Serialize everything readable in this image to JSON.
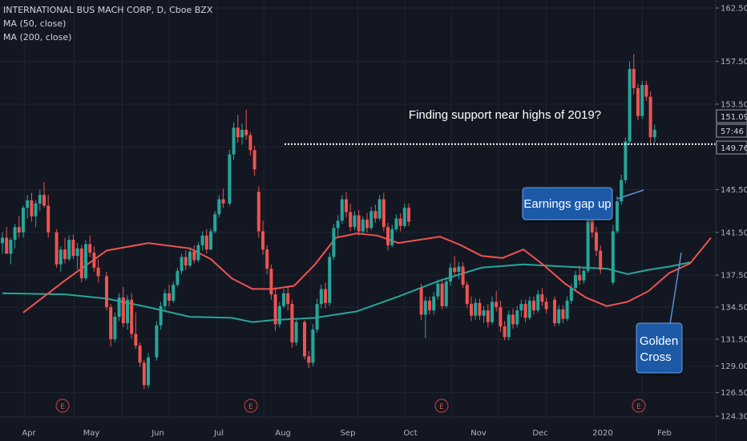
{
  "chart_data": {
    "type": "candlestick",
    "title": "INTERNATIONAL BUS MACH CORP, D, Cboe BZX",
    "indicators": [
      {
        "name": "MA (50, close)",
        "color": "#ef5350"
      },
      {
        "name": "MA (200, close)",
        "color": "#26a69a"
      }
    ],
    "ylim": [
      124.3,
      162.5
    ],
    "y_ticks": [
      "124.30",
      "126.50",
      "129.00",
      "131.50",
      "134.50",
      "137.50",
      "141.50",
      "145.50",
      "149.76",
      "153.50",
      "157.50",
      "162.50"
    ],
    "x_ticks": [
      "Apr",
      "May",
      "Jun",
      "Jul",
      "Aug",
      "Sep",
      "Oct",
      "Nov",
      "Dec",
      "2020",
      "Feb"
    ],
    "price_labels": {
      "upper": "151.09",
      "countdown": "57:46",
      "lower": "149.76"
    },
    "earnings_marker": "E",
    "annotations": {
      "support": "Finding support near highs of 2019?",
      "gap": "Earnings gap up",
      "cross_line1": "Golden",
      "cross_line2": "Cross"
    },
    "support_level": 149.76,
    "ma50": [
      [
        1,
        134
      ],
      [
        3,
        137
      ],
      [
        5,
        139.8
      ],
      [
        7,
        140.5
      ],
      [
        9,
        140
      ],
      [
        10,
        139
      ],
      [
        11,
        137.2
      ],
      [
        12,
        136.2
      ],
      [
        13,
        136.2
      ],
      [
        14,
        136.5
      ],
      [
        15,
        138.5
      ],
      [
        16,
        141
      ],
      [
        17,
        141.4
      ],
      [
        18,
        141.2
      ],
      [
        19,
        140.5
      ],
      [
        20,
        140.8
      ],
      [
        21,
        141.1
      ],
      [
        22,
        140.3
      ],
      [
        23,
        139.3
      ],
      [
        24,
        139.1
      ],
      [
        25,
        139.9
      ],
      [
        26,
        138.4
      ],
      [
        27,
        136.7
      ],
      [
        28,
        135.4
      ],
      [
        29,
        134.6
      ],
      [
        30,
        135
      ],
      [
        31,
        136
      ],
      [
        32,
        137.7
      ],
      [
        33,
        138.6
      ],
      [
        34,
        141
      ]
    ],
    "ma200": [
      [
        0,
        135.8
      ],
      [
        3,
        135.7
      ],
      [
        5,
        135.3
      ],
      [
        7,
        134.5
      ],
      [
        9,
        133.6
      ],
      [
        11,
        133.5
      ],
      [
        12,
        133.1
      ],
      [
        13,
        133.3
      ],
      [
        15,
        133.5
      ],
      [
        17,
        134.1
      ],
      [
        19,
        135.5
      ],
      [
        21,
        137
      ],
      [
        23,
        138.2
      ],
      [
        25,
        138.5
      ],
      [
        27,
        138.3
      ],
      [
        29,
        138.1
      ],
      [
        30,
        137.6
      ],
      [
        31,
        138
      ],
      [
        32,
        138.3
      ],
      [
        33,
        138.7
      ]
    ],
    "candles": [
      [
        0.0,
        140.5,
        141.5,
        139.5,
        141.0
      ],
      [
        0.2,
        141.0,
        142.0,
        139.8,
        139.5
      ],
      [
        0.4,
        139.5,
        141.0,
        138.5,
        140.8
      ],
      [
        0.6,
        140.8,
        142.3,
        140.0,
        142.0
      ],
      [
        0.8,
        142.0,
        143.0,
        141.0,
        141.5
      ],
      [
        1.0,
        141.5,
        144.0,
        141.0,
        143.8
      ],
      [
        1.2,
        143.8,
        145.0,
        142.8,
        144.5
      ],
      [
        1.4,
        144.5,
        145.2,
        142.5,
        143.0
      ],
      [
        1.6,
        143.0,
        144.5,
        142.0,
        144.2
      ],
      [
        1.8,
        144.2,
        145.5,
        143.5,
        145.0
      ],
      [
        2.0,
        145.0,
        146.2,
        143.8,
        144.0
      ],
      [
        2.2,
        144.0,
        145.0,
        141.0,
        141.5
      ],
      [
        2.6,
        141.5,
        141.8,
        138.2,
        138.5
      ],
      [
        2.8,
        138.5,
        140.2,
        137.8,
        139.9
      ],
      [
        3.0,
        139.9,
        141.0,
        138.6,
        139.0
      ],
      [
        3.2,
        139.0,
        141.2,
        138.8,
        140.8
      ],
      [
        3.4,
        140.8,
        141.3,
        139.0,
        139.3
      ],
      [
        3.6,
        139.3,
        140.5,
        138.0,
        140.0
      ],
      [
        3.8,
        140.0,
        140.3,
        136.8,
        137.2
      ],
      [
        4.0,
        137.2,
        140.8,
        137.0,
        140.4
      ],
      [
        4.2,
        140.4,
        141.2,
        139.2,
        139.6
      ],
      [
        4.4,
        139.6,
        140.2,
        137.8,
        138.2
      ],
      [
        4.6,
        138.2,
        139.0,
        136.8,
        137.4
      ],
      [
        5.0,
        137.4,
        137.8,
        134.2,
        134.5
      ],
      [
        5.2,
        134.5,
        134.8,
        130.8,
        131.5
      ],
      [
        5.4,
        131.5,
        134.0,
        131.2,
        133.6
      ],
      [
        5.6,
        133.6,
        135.8,
        133.2,
        135.4
      ],
      [
        5.8,
        135.4,
        136.4,
        132.6,
        133.0
      ],
      [
        6.0,
        133.0,
        135.6,
        132.4,
        135.2
      ],
      [
        6.2,
        135.2,
        135.8,
        131.6,
        132.0
      ],
      [
        6.4,
        132.0,
        134.0,
        130.6,
        130.9
      ],
      [
        6.6,
        130.9,
        131.2,
        128.9,
        129.3
      ],
      [
        6.8,
        129.3,
        129.6,
        126.8,
        127.2
      ],
      [
        7.0,
        127.2,
        130.2,
        126.9,
        129.8
      ],
      [
        7.4,
        129.8,
        133.2,
        129.5,
        132.8
      ],
      [
        7.6,
        132.8,
        135.0,
        132.4,
        134.6
      ],
      [
        7.8,
        134.6,
        136.2,
        134.2,
        135.8
      ],
      [
        8.0,
        135.8,
        136.6,
        134.6,
        135.1
      ],
      [
        8.2,
        135.1,
        136.9,
        134.9,
        136.6
      ],
      [
        8.4,
        136.6,
        138.2,
        136.4,
        137.9
      ],
      [
        8.6,
        137.9,
        139.5,
        137.6,
        139.2
      ],
      [
        8.8,
        139.2,
        139.8,
        138.0,
        138.4
      ],
      [
        9.0,
        138.4,
        140.1,
        138.2,
        139.7
      ],
      [
        9.2,
        139.7,
        140.3,
        138.6,
        138.9
      ],
      [
        9.4,
        138.9,
        140.6,
        138.7,
        140.3
      ],
      [
        9.6,
        140.3,
        141.6,
        139.8,
        141.2
      ],
      [
        9.8,
        141.2,
        141.8,
        139.5,
        139.9
      ],
      [
        10.0,
        139.9,
        141.9,
        139.8,
        141.6
      ],
      [
        10.2,
        141.6,
        143.5,
        141.4,
        143.2
      ],
      [
        10.4,
        143.2,
        145.0,
        142.9,
        144.6
      ],
      [
        10.6,
        144.6,
        145.6,
        143.8,
        144.2
      ],
      [
        10.9,
        144.2,
        149.2,
        144.0,
        148.8
      ],
      [
        11.1,
        148.8,
        151.8,
        148.3,
        151.3
      ],
      [
        11.3,
        151.3,
        152.5,
        149.9,
        150.4
      ],
      [
        11.5,
        150.4,
        151.7,
        149.7,
        151.1
      ],
      [
        11.7,
        151.1,
        153.0,
        150.2,
        150.6
      ],
      [
        11.9,
        150.6,
        150.9,
        148.7,
        149.2
      ],
      [
        12.1,
        149.2,
        149.6,
        146.8,
        147.4
      ],
      [
        12.3,
        145.3,
        145.8,
        141.0,
        141.6
      ],
      [
        12.5,
        141.6,
        142.6,
        139.4,
        139.9
      ],
      [
        12.7,
        139.9,
        140.3,
        137.6,
        138.1
      ],
      [
        12.9,
        138.1,
        138.5,
        135.2,
        135.7
      ],
      [
        13.1,
        135.7,
        136.4,
        132.3,
        132.9
      ],
      [
        13.3,
        132.9,
        135.0,
        132.6,
        134.6
      ],
      [
        13.5,
        134.6,
        136.2,
        134.4,
        135.8
      ],
      [
        13.7,
        135.8,
        136.4,
        134.2,
        134.8
      ],
      [
        13.9,
        134.8,
        135.2,
        130.7,
        131.2
      ],
      [
        14.1,
        131.2,
        133.5,
        130.9,
        133.1
      ],
      [
        14.5,
        133.1,
        133.3,
        129.6,
        129.9
      ],
      [
        14.7,
        129.9,
        130.4,
        128.8,
        129.3
      ],
      [
        14.9,
        129.3,
        132.9,
        129.0,
        132.4
      ],
      [
        15.1,
        132.4,
        135.3,
        132.1,
        134.8
      ],
      [
        15.3,
        134.8,
        136.6,
        134.4,
        136.2
      ],
      [
        15.5,
        136.2,
        136.8,
        134.4,
        134.9
      ],
      [
        15.7,
        134.9,
        139.6,
        134.6,
        139.2
      ],
      [
        15.9,
        139.2,
        142.3,
        138.9,
        141.9
      ],
      [
        16.1,
        141.9,
        143.1,
        141.1,
        142.6
      ],
      [
        16.3,
        142.6,
        145.0,
        142.3,
        144.6
      ],
      [
        16.5,
        144.6,
        145.3,
        142.9,
        143.4
      ],
      [
        16.7,
        143.4,
        144.2,
        141.6,
        142.0
      ],
      [
        16.9,
        142.0,
        143.5,
        141.7,
        143.1
      ],
      [
        17.1,
        143.1,
        143.6,
        141.2,
        141.6
      ],
      [
        17.3,
        141.6,
        143.0,
        141.3,
        142.7
      ],
      [
        17.5,
        142.7,
        143.3,
        141.5,
        141.9
      ],
      [
        17.7,
        141.9,
        143.9,
        141.7,
        143.5
      ],
      [
        17.9,
        143.5,
        144.1,
        142.4,
        142.8
      ],
      [
        18.1,
        142.8,
        145.0,
        142.6,
        144.6
      ],
      [
        18.3,
        144.6,
        145.2,
        141.6,
        142.0
      ],
      [
        18.5,
        142.0,
        142.4,
        139.8,
        140.3
      ],
      [
        18.7,
        140.3,
        142.2,
        140.1,
        141.8
      ],
      [
        18.9,
        141.8,
        143.2,
        141.6,
        142.8
      ],
      [
        19.1,
        142.8,
        143.3,
        141.6,
        142.1
      ],
      [
        19.3,
        142.1,
        144.2,
        141.9,
        143.8
      ],
      [
        19.5,
        143.8,
        144.2,
        142.1,
        142.5
      ],
      [
        20.1,
        136.3,
        136.7,
        133.3,
        133.8
      ],
      [
        20.3,
        133.8,
        135.5,
        131.6,
        135.1
      ],
      [
        20.5,
        135.1,
        135.5,
        133.8,
        134.2
      ],
      [
        20.7,
        134.2,
        135.9,
        133.8,
        135.5
      ],
      [
        20.9,
        135.5,
        137.1,
        135.2,
        136.7
      ],
      [
        21.1,
        136.7,
        137.0,
        134.3,
        134.6
      ],
      [
        21.3,
        134.6,
        137.3,
        134.4,
        136.9
      ],
      [
        21.5,
        136.9,
        138.6,
        136.5,
        138.2
      ],
      [
        21.7,
        138.2,
        139.3,
        137.5,
        137.8
      ],
      [
        21.9,
        137.8,
        138.7,
        137.1,
        138.3
      ],
      [
        22.1,
        138.3,
        138.7,
        136.3,
        136.6
      ],
      [
        22.3,
        136.6,
        136.9,
        134.4,
        134.8
      ],
      [
        22.5,
        134.8,
        135.5,
        133.2,
        133.7
      ],
      [
        22.7,
        133.7,
        135.3,
        133.3,
        134.9
      ],
      [
        22.9,
        134.9,
        135.3,
        133.3,
        133.7
      ],
      [
        23.1,
        133.7,
        134.6,
        133.0,
        134.2
      ],
      [
        23.3,
        134.2,
        134.8,
        132.6,
        133.1
      ],
      [
        23.5,
        133.1,
        135.5,
        132.9,
        135.0
      ],
      [
        23.7,
        135.0,
        136.0,
        134.1,
        134.5
      ],
      [
        23.9,
        134.5,
        135.1,
        132.2,
        132.7
      ],
      [
        24.1,
        132.7,
        133.2,
        131.4,
        131.7
      ],
      [
        24.3,
        131.7,
        134.2,
        131.4,
        133.8
      ],
      [
        24.5,
        133.8,
        134.4,
        132.5,
        132.9
      ],
      [
        24.7,
        132.9,
        134.6,
        132.6,
        134.2
      ],
      [
        24.9,
        134.2,
        135.2,
        133.6,
        134.8
      ],
      [
        25.1,
        134.8,
        135.2,
        133.1,
        133.5
      ],
      [
        25.3,
        133.5,
        135.5,
        133.3,
        135.1
      ],
      [
        25.5,
        135.1,
        135.5,
        133.8,
        134.2
      ],
      [
        25.7,
        134.2,
        136.1,
        134.0,
        135.7
      ],
      [
        25.9,
        135.7,
        136.3,
        134.6,
        135.0
      ],
      [
        26.1,
        135.0,
        135.4,
        133.9,
        134.3
      ],
      [
        26.5,
        135.2,
        135.5,
        132.7,
        133.0
      ],
      [
        26.7,
        133.0,
        134.7,
        132.8,
        134.3
      ],
      [
        26.9,
        134.3,
        134.7,
        133.0,
        133.4
      ],
      [
        27.1,
        133.4,
        135.5,
        133.2,
        135.1
      ],
      [
        27.3,
        135.1,
        136.7,
        134.8,
        136.3
      ],
      [
        27.5,
        136.3,
        137.9,
        136.0,
        137.5
      ],
      [
        27.7,
        137.5,
        138.4,
        136.6,
        137.0
      ],
      [
        27.9,
        137.0,
        138.3,
        136.7,
        137.9
      ],
      [
        28.1,
        137.9,
        145.5,
        137.7,
        144.7
      ],
      [
        28.3,
        144.7,
        145.3,
        141.0,
        141.5
      ],
      [
        28.5,
        141.5,
        142.0,
        139.3,
        139.8
      ],
      [
        28.7,
        139.8,
        140.3,
        137.6,
        138.0
      ],
      [
        29.3,
        136.8,
        142.2,
        136.6,
        141.6
      ],
      [
        29.5,
        141.6,
        144.9,
        141.4,
        144.4
      ],
      [
        29.7,
        144.4,
        146.9,
        144.1,
        146.4
      ],
      [
        29.9,
        146.4,
        150.4,
        146.1,
        150.0
      ],
      [
        30.1,
        150.0,
        157.5,
        149.7,
        156.8
      ],
      [
        30.3,
        156.8,
        158.2,
        154.4,
        155.0
      ],
      [
        30.5,
        155.0,
        155.4,
        152.0,
        152.4
      ],
      [
        30.7,
        152.4,
        155.7,
        152.1,
        155.3
      ],
      [
        30.9,
        155.3,
        155.7,
        153.8,
        154.2
      ],
      [
        31.1,
        154.2,
        154.7,
        149.9,
        150.4
      ],
      [
        31.3,
        150.4,
        151.6,
        149.9,
        151.1
      ]
    ]
  }
}
